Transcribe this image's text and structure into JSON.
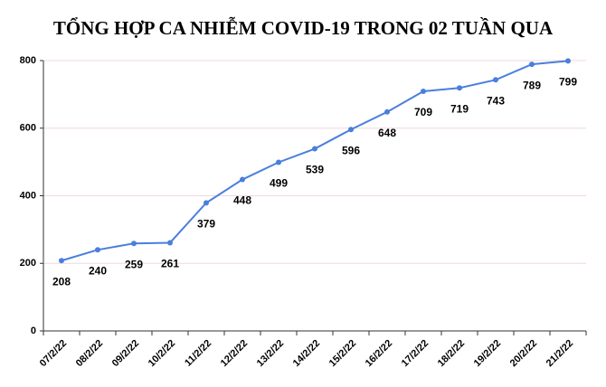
{
  "chart_data": {
    "type": "line",
    "title": "TỔNG HỢP CA NHIỄM COVID-19 TRONG 02 TUẦN QUA",
    "categories": [
      "07/2/22",
      "08/2/22",
      "09/2/22",
      "10/2/22",
      "11/2/22",
      "12/2/22",
      "13/2/22",
      "14/2/22",
      "15/2/22",
      "16/2/22",
      "17/2/22",
      "18/2/22",
      "19/2/22",
      "20/2/22",
      "21/2/22"
    ],
    "values": [
      208,
      240,
      259,
      261,
      379,
      448,
      499,
      539,
      596,
      648,
      709,
      719,
      743,
      789,
      799
    ],
    "color": "#4a7fdc",
    "ylim": [
      0,
      800
    ],
    "yticks": [
      0,
      200,
      400,
      600,
      800
    ],
    "grid": true
  }
}
